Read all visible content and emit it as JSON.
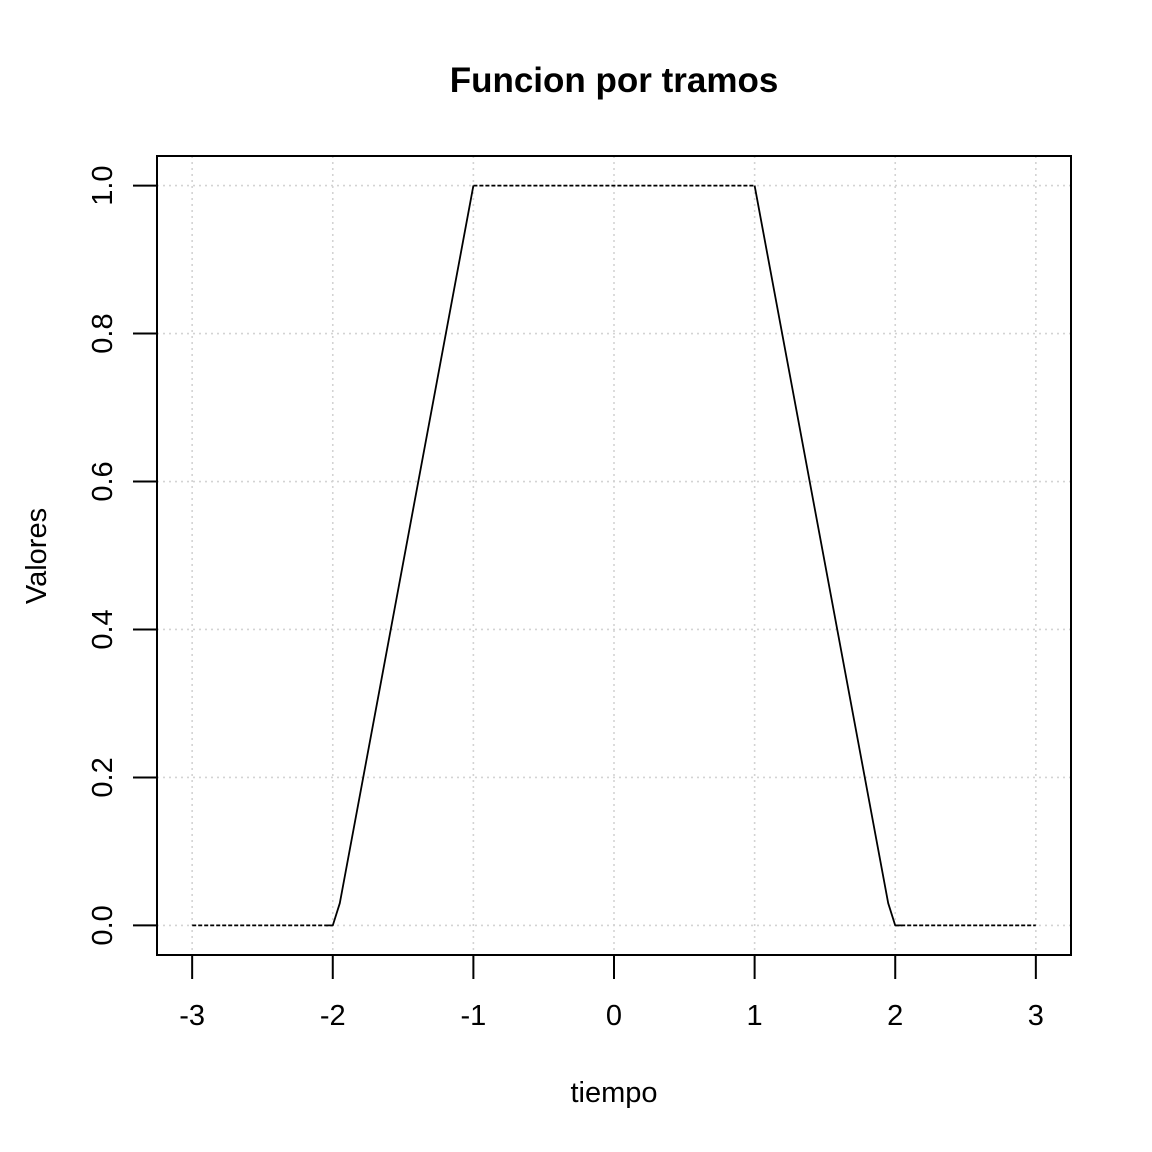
{
  "chart_data": {
    "type": "line",
    "title": "Funcion por tramos",
    "xlabel": "tiempo",
    "ylabel": "Valores",
    "xlim": [
      -3.25,
      3.25
    ],
    "ylim": [
      -0.04,
      1.04
    ],
    "x_ticks": [
      -3,
      -2,
      -1,
      0,
      1,
      2,
      3
    ],
    "x_tick_labels": [
      "-3",
      "-2",
      "-1",
      "0",
      "1",
      "2",
      "3"
    ],
    "y_ticks": [
      0.0,
      0.2,
      0.4,
      0.6,
      0.8,
      1.0
    ],
    "y_tick_labels": [
      "0.0",
      "0.2",
      "0.4",
      "0.6",
      "0.8",
      "1.0"
    ],
    "grid": true,
    "series": [
      {
        "segments": [
          {
            "style": "dashed",
            "x": [
              -3,
              -2
            ],
            "y": [
              0,
              0
            ]
          },
          {
            "style": "solid",
            "x": [
              -2.05,
              -2,
              -1.95,
              -1
            ],
            "y": [
              0,
              0,
              0.03,
              1
            ]
          },
          {
            "style": "dashed",
            "x": [
              -1,
              1
            ],
            "y": [
              1,
              1
            ]
          },
          {
            "style": "solid",
            "x": [
              1,
              1.95,
              2,
              2.05
            ],
            "y": [
              1,
              0.03,
              0,
              0
            ]
          },
          {
            "style": "dashed",
            "x": [
              2,
              3
            ],
            "y": [
              0,
              0
            ]
          }
        ]
      }
    ]
  }
}
